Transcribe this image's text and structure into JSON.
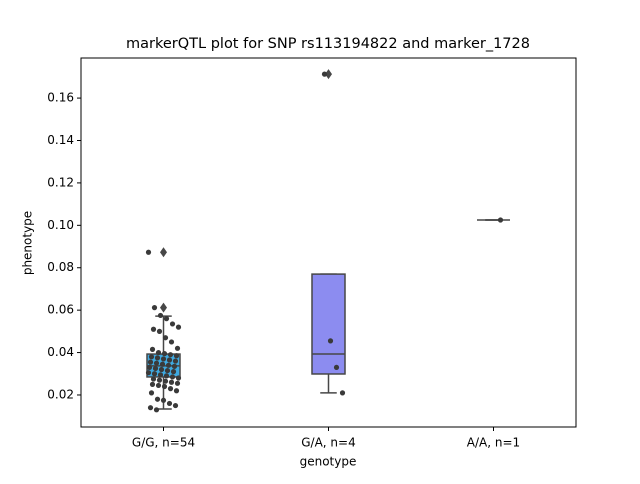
{
  "chart_data": {
    "type": "box",
    "title": "markerQTL plot for SNP rs113194822 and marker_1728",
    "xlabel": "genotype",
    "ylabel": "phenotype",
    "categories": [
      "G/G, n=54",
      "G/A, n=4",
      "A/A, n=1"
    ],
    "ylim": [
      0.0049,
      0.1789
    ],
    "yticks": [
      0.02,
      0.04,
      0.06,
      0.08,
      {
        "value": 0.1,
        "label": "0.10"
      },
      0.12,
      0.14,
      0.16
    ],
    "boxes": [
      {
        "color": "#3fa9e0",
        "q1": 0.0285,
        "median": 0.0337,
        "q3": 0.0393,
        "whisker_low": 0.0134,
        "whisker_high": 0.0572,
        "outliers": [
          0.0612,
          0.0873
        ],
        "points": [
          0.0873,
          0.0612,
          0.0575,
          0.056,
          0.0535,
          0.052,
          0.051,
          0.05,
          0.047,
          0.045,
          0.042,
          0.0415,
          0.04,
          0.0395,
          0.039,
          0.0385,
          0.038,
          0.0375,
          0.037,
          0.0365,
          0.036,
          0.0355,
          0.035,
          0.0345,
          0.034,
          0.0335,
          0.033,
          0.0325,
          0.032,
          0.0315,
          0.031,
          0.0305,
          0.03,
          0.0295,
          0.029,
          0.0285,
          0.028,
          0.0275,
          0.027,
          0.0265,
          0.026,
          0.0255,
          0.025,
          0.0245,
          0.024,
          0.023,
          0.022,
          0.021,
          0.018,
          0.0175,
          0.016,
          0.015,
          0.014,
          0.013
        ]
      },
      {
        "color": "#8c8cf0",
        "q1": 0.0299,
        "median": 0.0393,
        "q3": 0.077,
        "whisker_low": 0.021,
        "whisker_high": 0.077,
        "outliers": [
          0.1713
        ],
        "points": [
          0.1713,
          0.0455,
          0.033,
          0.021
        ]
      },
      {
        "color": "#ffffff",
        "q1": 0.1025,
        "median": 0.1025,
        "q3": 0.1025,
        "whisker_low": 0.1025,
        "whisker_high": 0.1025,
        "outliers": [],
        "points": [
          0.1025
        ]
      }
    ]
  }
}
